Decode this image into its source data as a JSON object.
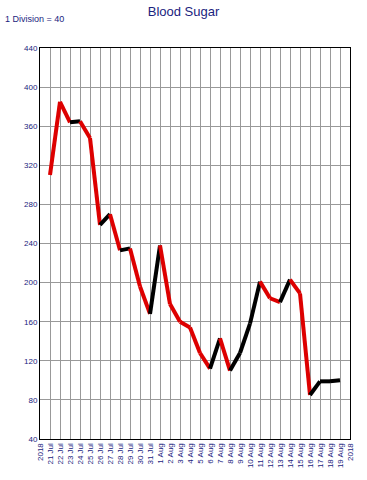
{
  "chart_data": {
    "type": "line",
    "title": "Blood Sugar",
    "annotation": "1 Division = 40",
    "categories": [
      "2018",
      "21 Jul",
      "22 Jul",
      "23 Jul",
      "24 Jul",
      "25 Jul",
      "26 Jul",
      "27 Jul",
      "28 Jul",
      "29 Jul",
      "30 Jul",
      "31 Jul",
      "1 Aug",
      "2 Aug",
      "3 Aug",
      "4 Aug",
      "5 Aug",
      "6 Aug",
      "7 Aug",
      "8 Aug",
      "9 Aug",
      "10 Aug",
      "11 Aug",
      "12 Aug",
      "13 Aug",
      "14 Aug",
      "15 Aug",
      "16 Aug",
      "17 Aug",
      "18 Aug",
      "19 Aug",
      "2018"
    ],
    "values": [
      null,
      310,
      385,
      364,
      365,
      348,
      259,
      270,
      233,
      235,
      196,
      168,
      238,
      178,
      160,
      154,
      128,
      112,
      143,
      110,
      128,
      158,
      201,
      184,
      180,
      203,
      189,
      85,
      99,
      99,
      100,
      null
    ],
    "colors": [
      null,
      "#000000",
      "#dd0000",
      "#dd0000",
      "#000000",
      "#dd0000",
      "#dd0000",
      "#000000",
      "#dd0000",
      "#000000",
      "#dd0000",
      "#dd0000",
      "#000000",
      "#dd0000",
      "#dd0000",
      "#dd0000",
      "#dd0000",
      "#dd0000",
      "#000000",
      "#dd0000",
      "#000000",
      "#000000",
      "#000000",
      "#dd0000",
      "#dd0000",
      "#000000",
      "#dd0000",
      "#dd0000",
      "#000000",
      "#000000",
      "#000000",
      null
    ],
    "ylim": [
      40,
      440
    ],
    "yticks": [
      40,
      80,
      120,
      160,
      200,
      240,
      280,
      320,
      360,
      400,
      440
    ],
    "grid": true
  }
}
